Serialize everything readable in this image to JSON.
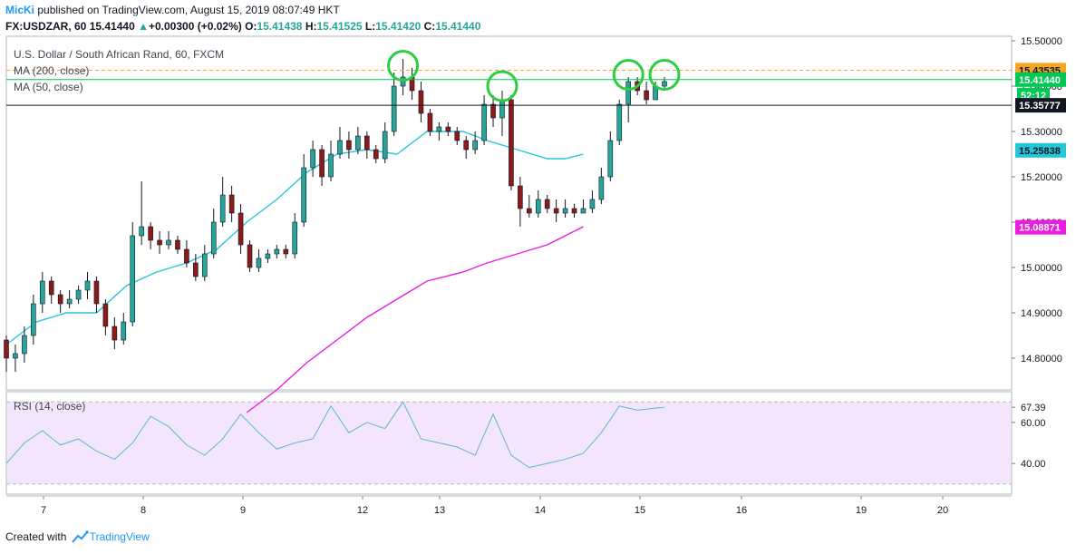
{
  "header": {
    "author": "MicKi",
    "published_text": "published on TradingView.com, August 15, 2019 08:07:49 HKT",
    "symbol": "FX:USDZAR, 60",
    "last_price": "15.41440",
    "change_arrow": "▲",
    "change": "+0.00300 (+0.02%)",
    "open_label": "O:",
    "open": "15.41438",
    "high_label": "H:",
    "high": "15.41525",
    "low_label": "L:",
    "low": "15.41420",
    "close_label": "C:",
    "close": "15.41440"
  },
  "legend": {
    "title": "U.S. Dollar / South African Rand, 60, FXCM",
    "ma200": "MA (200, close)",
    "ma50": "MA (50, close)",
    "rsi": "RSI (14, close)"
  },
  "footer": {
    "created_with": "Created with",
    "brand": "TradingView",
    "logo_icon": "tradingview-cloud-icon"
  },
  "colors": {
    "bull": "#26a69a",
    "bear": "#8b1a1a",
    "candle_wick": "#131722",
    "ma50": "#26c6da",
    "ma200": "#e91ee0",
    "rsi_line": "#5db4d8",
    "rsi_band": "#f3e5fb",
    "highlight_circle": "#2ecc40",
    "resistance": "#f5a623",
    "last_price_bg": "#00c853",
    "ma50_label_bg": "#26c6da",
    "ma200_label_bg": "#e91ee0"
  },
  "chart_data": [
    {
      "type": "candlestick",
      "title": "U.S. Dollar / South African Rand, 60, FXCM",
      "x_tick_labels": [
        "7",
        "8",
        "9",
        "12",
        "13",
        "14",
        "15",
        "16",
        "19",
        "20"
      ],
      "y_tick_labels": [
        "15.50000",
        "15.40000",
        "15.30000",
        "15.20000",
        "15.10000",
        "15.00000",
        "14.90000",
        "14.80000"
      ],
      "ylim": [
        14.73,
        15.51
      ],
      "price_labels": [
        {
          "name": "resistance",
          "value": "15.43535"
        },
        {
          "name": "last",
          "value": "15.41440"
        },
        {
          "name": "countdown",
          "value": "52:12"
        },
        {
          "name": "crosshair",
          "value": "15.35777"
        },
        {
          "name": "ma50",
          "value": "15.25838"
        },
        {
          "name": "ma200",
          "value": "15.08871"
        }
      ],
      "horizontal_lines": [
        {
          "name": "resistance",
          "value": 15.43535,
          "style": "dashed"
        },
        {
          "name": "last-price",
          "value": 15.4144,
          "style": "solid"
        },
        {
          "name": "crosshair",
          "value": 15.35777,
          "style": "solid"
        }
      ],
      "series": [
        {
          "name": "MA (50, close)",
          "x": [
            0.0,
            0.5,
            1.0,
            1.5,
            2.0,
            2.5,
            3.0,
            3.5,
            4.0,
            4.5,
            5.0,
            5.5,
            6.0,
            6.5,
            7.0,
            7.6,
            8.0,
            8.5,
            9.0,
            9.3,
            9.6
          ],
          "values": [
            14.83,
            14.88,
            14.9,
            14.9,
            14.96,
            14.99,
            15.01,
            15.04,
            15.1,
            15.15,
            15.21,
            15.25,
            15.26,
            15.25,
            15.3,
            15.3,
            15.28,
            15.26,
            15.24,
            15.24,
            15.25
          ]
        },
        {
          "name": "MA (200, close)",
          "x": [
            4.0,
            4.5,
            5.0,
            5.5,
            6.0,
            6.5,
            7.0,
            7.6,
            8.0,
            8.5,
            9.0,
            9.3,
            9.6
          ],
          "values": [
            14.68,
            14.73,
            14.79,
            14.84,
            14.89,
            14.93,
            14.97,
            14.99,
            15.01,
            15.03,
            15.05,
            15.07,
            15.09
          ]
        }
      ],
      "candles": [
        [
          0.0,
          14.84,
          14.8,
          14.85,
          14.77
        ],
        [
          0.15,
          14.8,
          14.81,
          14.83,
          14.77
        ],
        [
          0.3,
          14.81,
          14.85,
          14.87,
          14.79
        ],
        [
          0.45,
          14.85,
          14.92,
          14.94,
          14.83
        ],
        [
          0.6,
          14.92,
          14.97,
          14.99,
          14.9
        ],
        [
          0.75,
          14.97,
          14.94,
          14.98,
          14.92
        ],
        [
          0.9,
          14.94,
          14.92,
          14.95,
          14.9
        ],
        [
          1.05,
          14.92,
          14.93,
          14.95,
          14.91
        ],
        [
          1.2,
          14.93,
          14.95,
          14.96,
          14.92
        ],
        [
          1.35,
          14.95,
          14.97,
          14.99,
          14.93
        ],
        [
          1.5,
          14.97,
          14.92,
          14.98,
          14.9
        ],
        [
          1.65,
          14.92,
          14.87,
          14.93,
          14.85
        ],
        [
          1.8,
          14.87,
          14.84,
          14.89,
          14.82
        ],
        [
          1.95,
          14.84,
          14.88,
          14.9,
          14.83
        ],
        [
          2.1,
          14.88,
          15.07,
          15.1,
          14.87
        ],
        [
          2.25,
          15.07,
          15.09,
          15.19,
          15.05
        ],
        [
          2.4,
          15.09,
          15.06,
          15.1,
          15.04
        ],
        [
          2.55,
          15.06,
          15.05,
          15.08,
          15.03
        ],
        [
          2.7,
          15.05,
          15.06,
          15.08,
          15.04
        ],
        [
          2.85,
          15.06,
          15.04,
          15.07,
          15.03
        ],
        [
          3.0,
          15.04,
          15.01,
          15.06,
          15.0
        ],
        [
          3.15,
          15.01,
          14.98,
          15.03,
          14.97
        ],
        [
          3.3,
          14.98,
          15.03,
          15.05,
          14.97
        ],
        [
          3.45,
          15.03,
          15.1,
          15.13,
          15.02
        ],
        [
          3.6,
          15.1,
          15.16,
          15.2,
          15.09
        ],
        [
          3.75,
          15.16,
          15.12,
          15.18,
          15.1
        ],
        [
          3.9,
          15.12,
          15.05,
          15.14,
          15.03
        ],
        [
          4.05,
          15.05,
          15.0,
          15.06,
          14.99
        ],
        [
          4.2,
          15.0,
          15.02,
          15.04,
          14.99
        ],
        [
          4.35,
          15.02,
          15.03,
          15.04,
          15.01
        ],
        [
          4.5,
          15.03,
          15.04,
          15.05,
          15.02
        ],
        [
          4.65,
          15.04,
          15.03,
          15.05,
          15.02
        ],
        [
          4.8,
          15.03,
          15.1,
          15.12,
          15.02
        ],
        [
          4.95,
          15.1,
          15.22,
          15.25,
          15.09
        ],
        [
          5.1,
          15.22,
          15.26,
          15.28,
          15.2
        ],
        [
          5.25,
          15.26,
          15.2,
          15.27,
          15.18
        ],
        [
          5.4,
          15.2,
          15.25,
          15.28,
          15.19
        ],
        [
          5.55,
          15.25,
          15.28,
          15.31,
          15.24
        ],
        [
          5.7,
          15.28,
          15.26,
          15.3,
          15.24
        ],
        [
          5.85,
          15.26,
          15.29,
          15.31,
          15.25
        ],
        [
          6.0,
          15.29,
          15.26,
          15.3,
          15.24
        ],
        [
          6.15,
          15.26,
          15.24,
          15.27,
          15.23
        ],
        [
          6.3,
          15.24,
          15.3,
          15.32,
          15.23
        ],
        [
          6.45,
          15.3,
          15.4,
          15.43,
          15.29
        ],
        [
          6.6,
          15.4,
          15.42,
          15.46,
          15.38
        ],
        [
          6.75,
          15.42,
          15.39,
          15.44,
          15.37
        ],
        [
          6.9,
          15.39,
          15.34,
          15.41,
          15.32
        ],
        [
          7.05,
          15.34,
          15.3,
          15.35,
          15.29
        ],
        [
          7.2,
          15.3,
          15.31,
          15.32,
          15.28
        ],
        [
          7.35,
          15.31,
          15.3,
          15.32,
          15.29
        ],
        [
          7.5,
          15.3,
          15.28,
          15.31,
          15.27
        ],
        [
          7.65,
          15.28,
          15.26,
          15.29,
          15.24
        ],
        [
          7.8,
          15.26,
          15.28,
          15.3,
          15.25
        ],
        [
          7.95,
          15.28,
          15.36,
          15.38,
          15.27
        ],
        [
          8.1,
          15.36,
          15.33,
          15.38,
          15.31
        ],
        [
          8.25,
          15.33,
          15.37,
          15.39,
          15.29
        ],
        [
          8.4,
          15.37,
          15.18,
          15.38,
          15.17
        ],
        [
          8.55,
          15.18,
          15.13,
          15.2,
          15.09
        ],
        [
          8.7,
          15.13,
          15.12,
          15.16,
          15.11
        ],
        [
          8.85,
          15.12,
          15.15,
          15.17,
          15.11
        ],
        [
          9.0,
          15.15,
          15.13,
          15.16,
          15.12
        ],
        [
          9.15,
          15.13,
          15.12,
          15.15,
          15.1
        ],
        [
          9.3,
          15.12,
          15.13,
          15.15,
          15.11
        ],
        [
          9.45,
          15.13,
          15.12,
          15.14,
          15.11
        ],
        [
          9.6,
          15.12,
          15.13,
          15.15,
          15.12
        ],
        [
          9.75,
          15.13,
          15.15,
          15.17,
          15.12
        ],
        [
          9.9,
          15.15,
          15.2,
          15.22,
          15.14
        ],
        [
          10.05,
          15.2,
          15.28,
          15.3,
          15.19
        ],
        [
          10.2,
          15.28,
          15.36,
          15.37,
          15.27
        ],
        [
          10.35,
          15.36,
          15.41,
          15.42,
          15.32
        ],
        [
          10.5,
          15.41,
          15.39,
          15.42,
          15.38
        ],
        [
          10.65,
          15.39,
          15.37,
          15.41,
          15.36
        ],
        [
          10.8,
          15.37,
          15.4,
          15.41,
          15.38
        ],
        [
          10.95,
          15.4,
          15.41,
          15.42,
          15.39
        ]
      ],
      "candle_x_scale": "candles[i][0] is a position in the same session units as series x"
    },
    {
      "type": "line",
      "title": "RSI (14, close)",
      "y_tick_labels": [
        "67.39",
        "60.00",
        "40.00"
      ],
      "band": [
        30,
        70
      ],
      "last_value": "67.39",
      "series": [
        {
          "name": "RSI (14, close)",
          "x": [
            0.0,
            0.3,
            0.6,
            0.9,
            1.2,
            1.5,
            1.8,
            2.1,
            2.4,
            2.7,
            3.0,
            3.3,
            3.6,
            3.9,
            4.2,
            4.5,
            4.8,
            5.1,
            5.4,
            5.7,
            6.0,
            6.3,
            6.6,
            6.9,
            7.2,
            7.5,
            7.8,
            8.1,
            8.4,
            8.7,
            9.0,
            9.3,
            9.6,
            9.9,
            10.2,
            10.5,
            10.8,
            10.95
          ],
          "values": [
            40,
            50,
            56,
            49,
            52,
            46,
            42,
            50,
            63,
            58,
            49,
            44,
            52,
            64,
            55,
            47,
            50,
            52,
            68,
            55,
            60,
            57,
            70,
            52,
            50,
            48,
            44,
            64,
            44,
            38,
            40,
            42,
            45,
            55,
            68,
            66,
            67,
            67.39
          ]
        }
      ]
    }
  ]
}
